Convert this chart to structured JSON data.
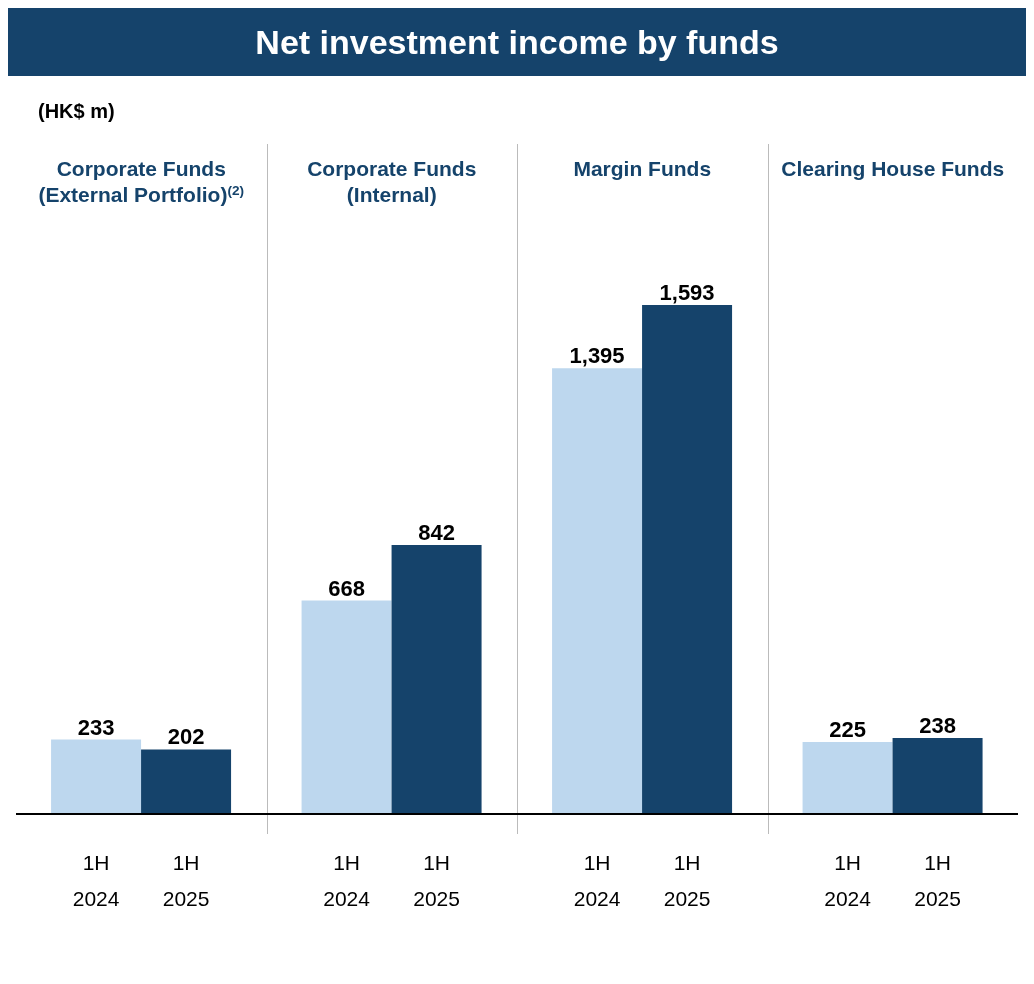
{
  "chart_data": {
    "type": "bar",
    "title": "Net investment income by funds",
    "ylabel": "(HK$ m)",
    "categories": [
      "Corporate Funds (External Portfolio)$^{(2)}$",
      "Corporate Funds (Internal)",
      "Margin Funds",
      "Clearing House Funds"
    ],
    "series": [
      {
        "name": "1H 2024",
        "color": "#bdd7ee",
        "values": [
          233,
          668,
          1395,
          225
        ],
        "value_labels": [
          "233",
          "668",
          "1,395",
          "225"
        ]
      },
      {
        "name": "1H 2025",
        "color": "#15436b",
        "values": [
          202,
          842,
          1593,
          238
        ],
        "value_labels": [
          "202",
          "842",
          "1,593",
          "238"
        ]
      }
    ],
    "legend": false,
    "grid": false
  }
}
